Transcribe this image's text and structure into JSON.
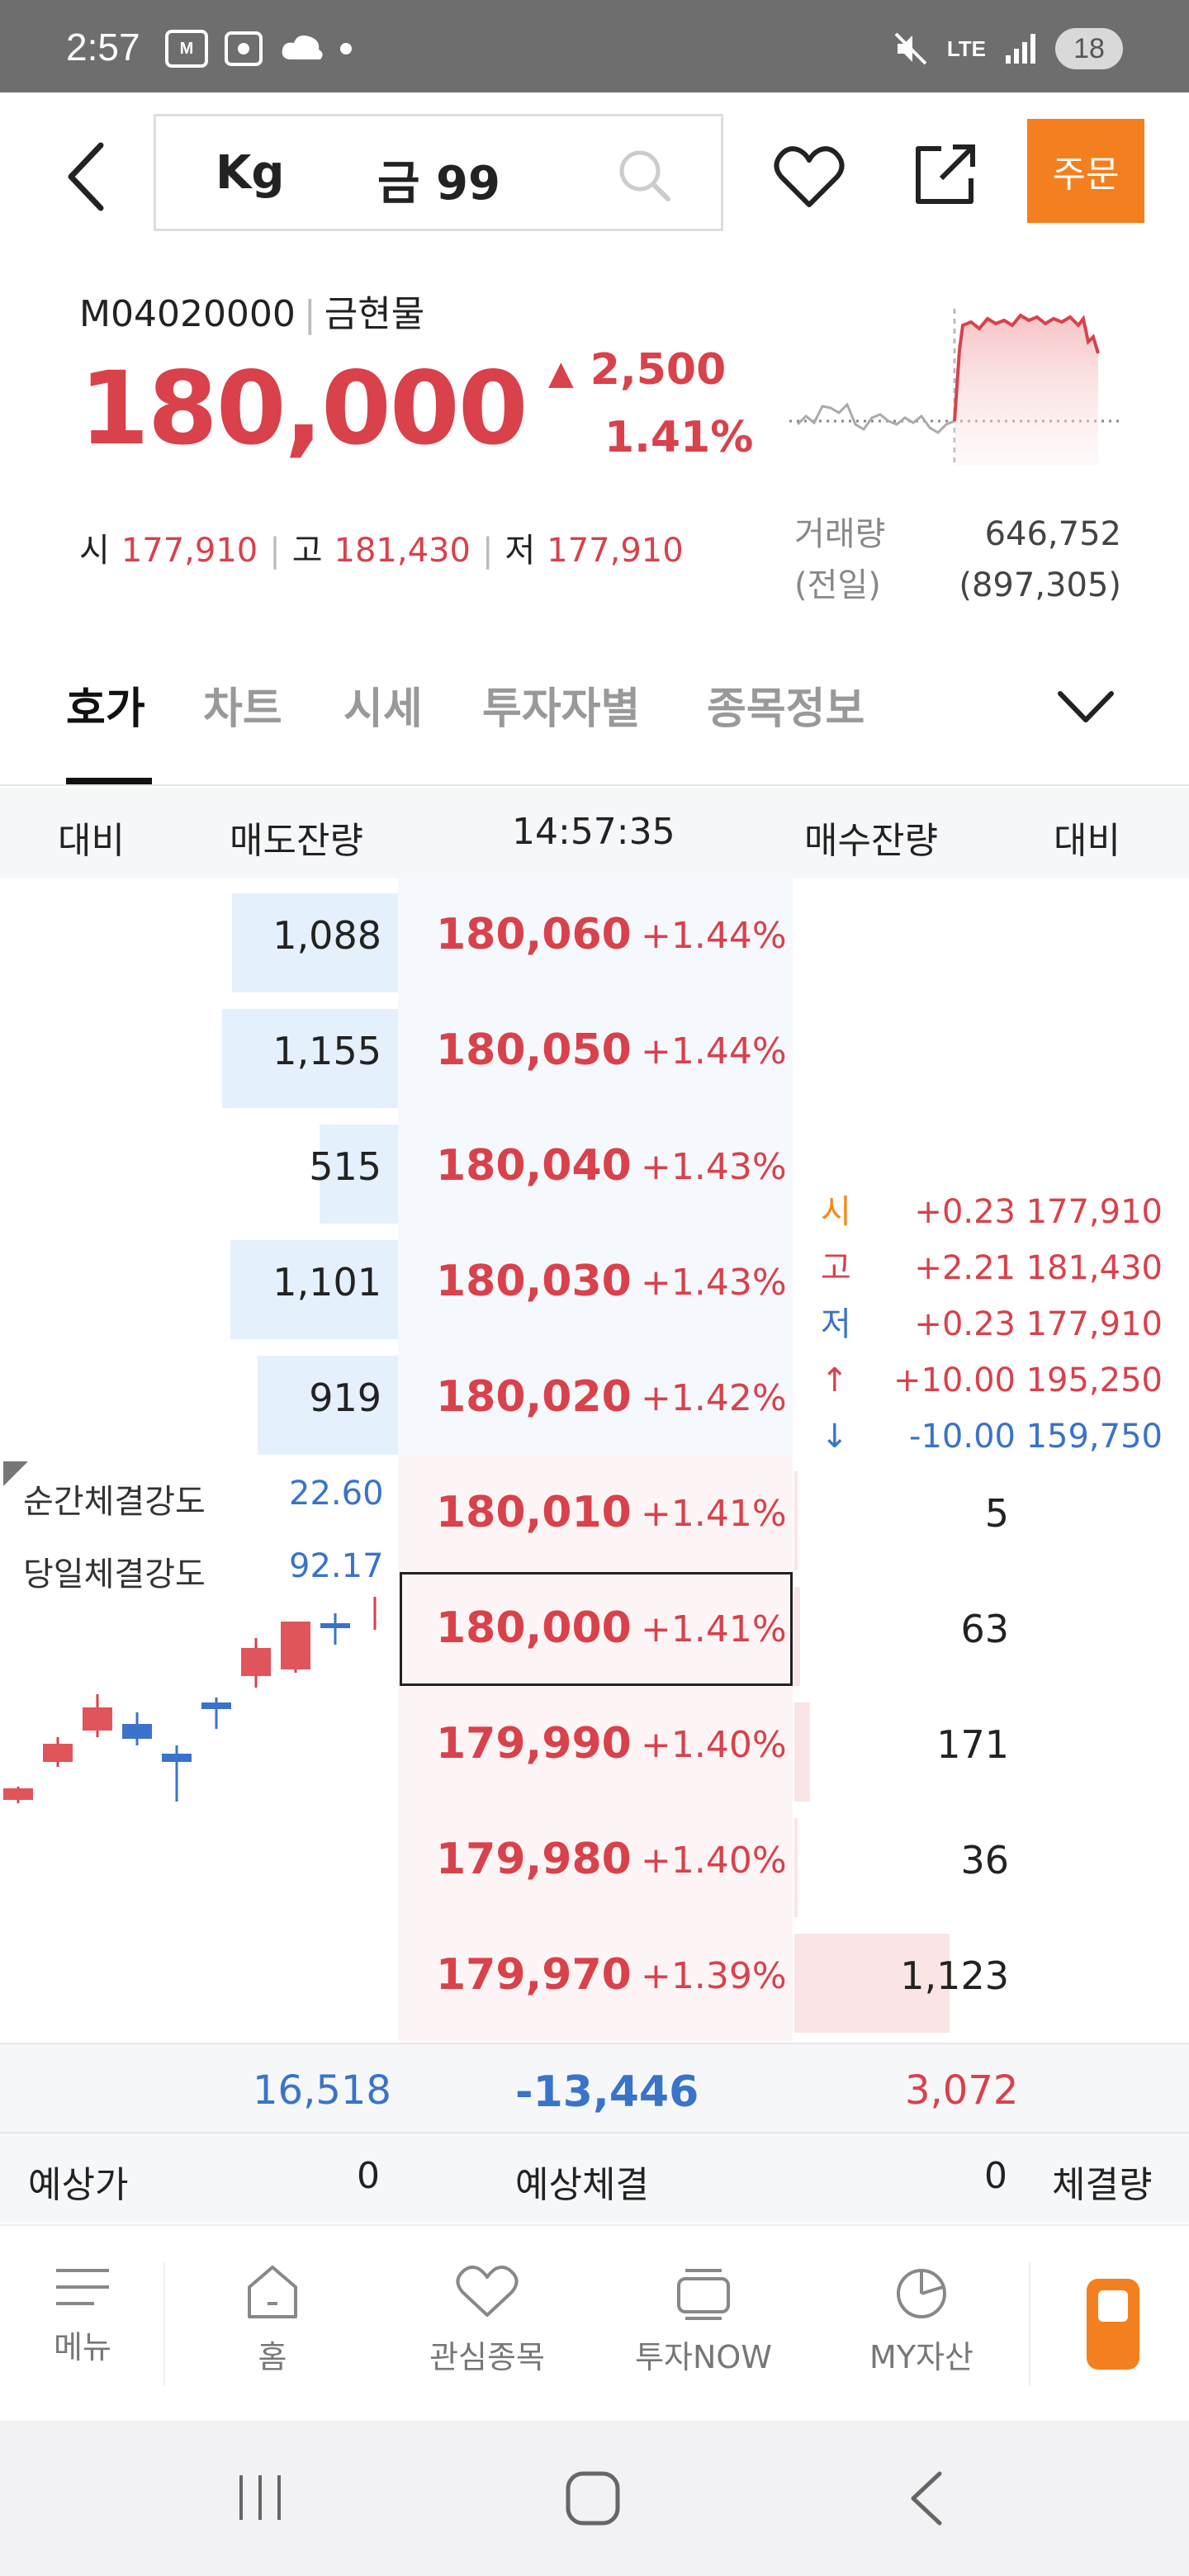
{
  "status_bar": {
    "time": "2:57",
    "app_badge": "M",
    "lte": "LTE",
    "battery": "18"
  },
  "header": {
    "symbol": "Kg",
    "name": "금 99",
    "order_button": "주문"
  },
  "quote": {
    "code": "M04020000",
    "market": "금현물",
    "price": "180,000",
    "change": "2,500",
    "change_pct": "1.41%",
    "open_label": "시",
    "open": "177,910",
    "high_label": "고",
    "high": "181,430",
    "low_label": "저",
    "low": "177,910",
    "volume_label": "거래량",
    "prev_label": "(전일)",
    "volume": "646,752",
    "prev_volume": "(897,305)"
  },
  "tabs": [
    "호가",
    "차트",
    "시세",
    "투자자별",
    "종목정보"
  ],
  "orderbook": {
    "headers": {
      "diff_left": "대비",
      "ask_qty": "매도잔량",
      "time": "14:57:35",
      "bid_qty": "매수잔량",
      "diff_right": "대비"
    },
    "asks": [
      {
        "price": "180,060",
        "pct": "+1.44%",
        "qty": "1,088",
        "qty_value": 1088
      },
      {
        "price": "180,050",
        "pct": "+1.44%",
        "qty": "1,155",
        "qty_value": 1155
      },
      {
        "price": "180,040",
        "pct": "+1.43%",
        "qty": "515",
        "qty_value": 515
      },
      {
        "price": "180,030",
        "pct": "+1.43%",
        "qty": "1,101",
        "qty_value": 1101
      },
      {
        "price": "180,020",
        "pct": "+1.42%",
        "qty": "919",
        "qty_value": 919
      }
    ],
    "bids": [
      {
        "price": "180,010",
        "pct": "+1.41%",
        "qty": "5",
        "qty_value": 5
      },
      {
        "price": "180,000",
        "pct": "+1.41%",
        "qty": "63",
        "qty_value": 63
      },
      {
        "price": "179,990",
        "pct": "+1.40%",
        "qty": "171",
        "qty_value": 171
      },
      {
        "price": "179,980",
        "pct": "+1.40%",
        "qty": "36",
        "qty_value": 36
      },
      {
        "price": "179,970",
        "pct": "+1.39%",
        "qty": "1,123",
        "qty_value": 1123
      }
    ],
    "stats": [
      {
        "label": "시",
        "change": "+0.23",
        "price": "177,910",
        "color": "#f08a1e",
        "pcolor": "#d9414b"
      },
      {
        "label": "고",
        "change": "+2.21",
        "price": "181,430",
        "color": "#d9414b",
        "pcolor": "#d9414b"
      },
      {
        "label": "저",
        "change": "+0.23",
        "price": "177,910",
        "color": "#3a73c9",
        "pcolor": "#d9414b"
      },
      {
        "label": "↑",
        "change": "+10.00",
        "price": "195,250",
        "color": "#d9414b",
        "pcolor": "#d9414b"
      },
      {
        "label": "↓",
        "change": "-10.00",
        "price": "159,750",
        "color": "#3a73c9",
        "pcolor": "#3a73c9"
      }
    ],
    "strength": {
      "instant_label": "순간체결강도",
      "instant": "22.60",
      "daily_label": "당일체결강도",
      "daily": "92.17"
    },
    "totals": {
      "ask_total": "16,518",
      "net": "-13,446",
      "bid_total": "3,072"
    },
    "expected": {
      "expected_price_label": "예상가",
      "expected_price": "0",
      "expected_trade_label": "예상체결",
      "expected_qty": "0",
      "trade_volume_label": "체결량"
    }
  },
  "bottom_nav": [
    "메뉴",
    "홈",
    "관심종목",
    "투자NOW",
    "MY자산"
  ],
  "colors": {
    "up": "#d9414b",
    "down": "#3a73c9",
    "accent": "#f47f1e"
  }
}
